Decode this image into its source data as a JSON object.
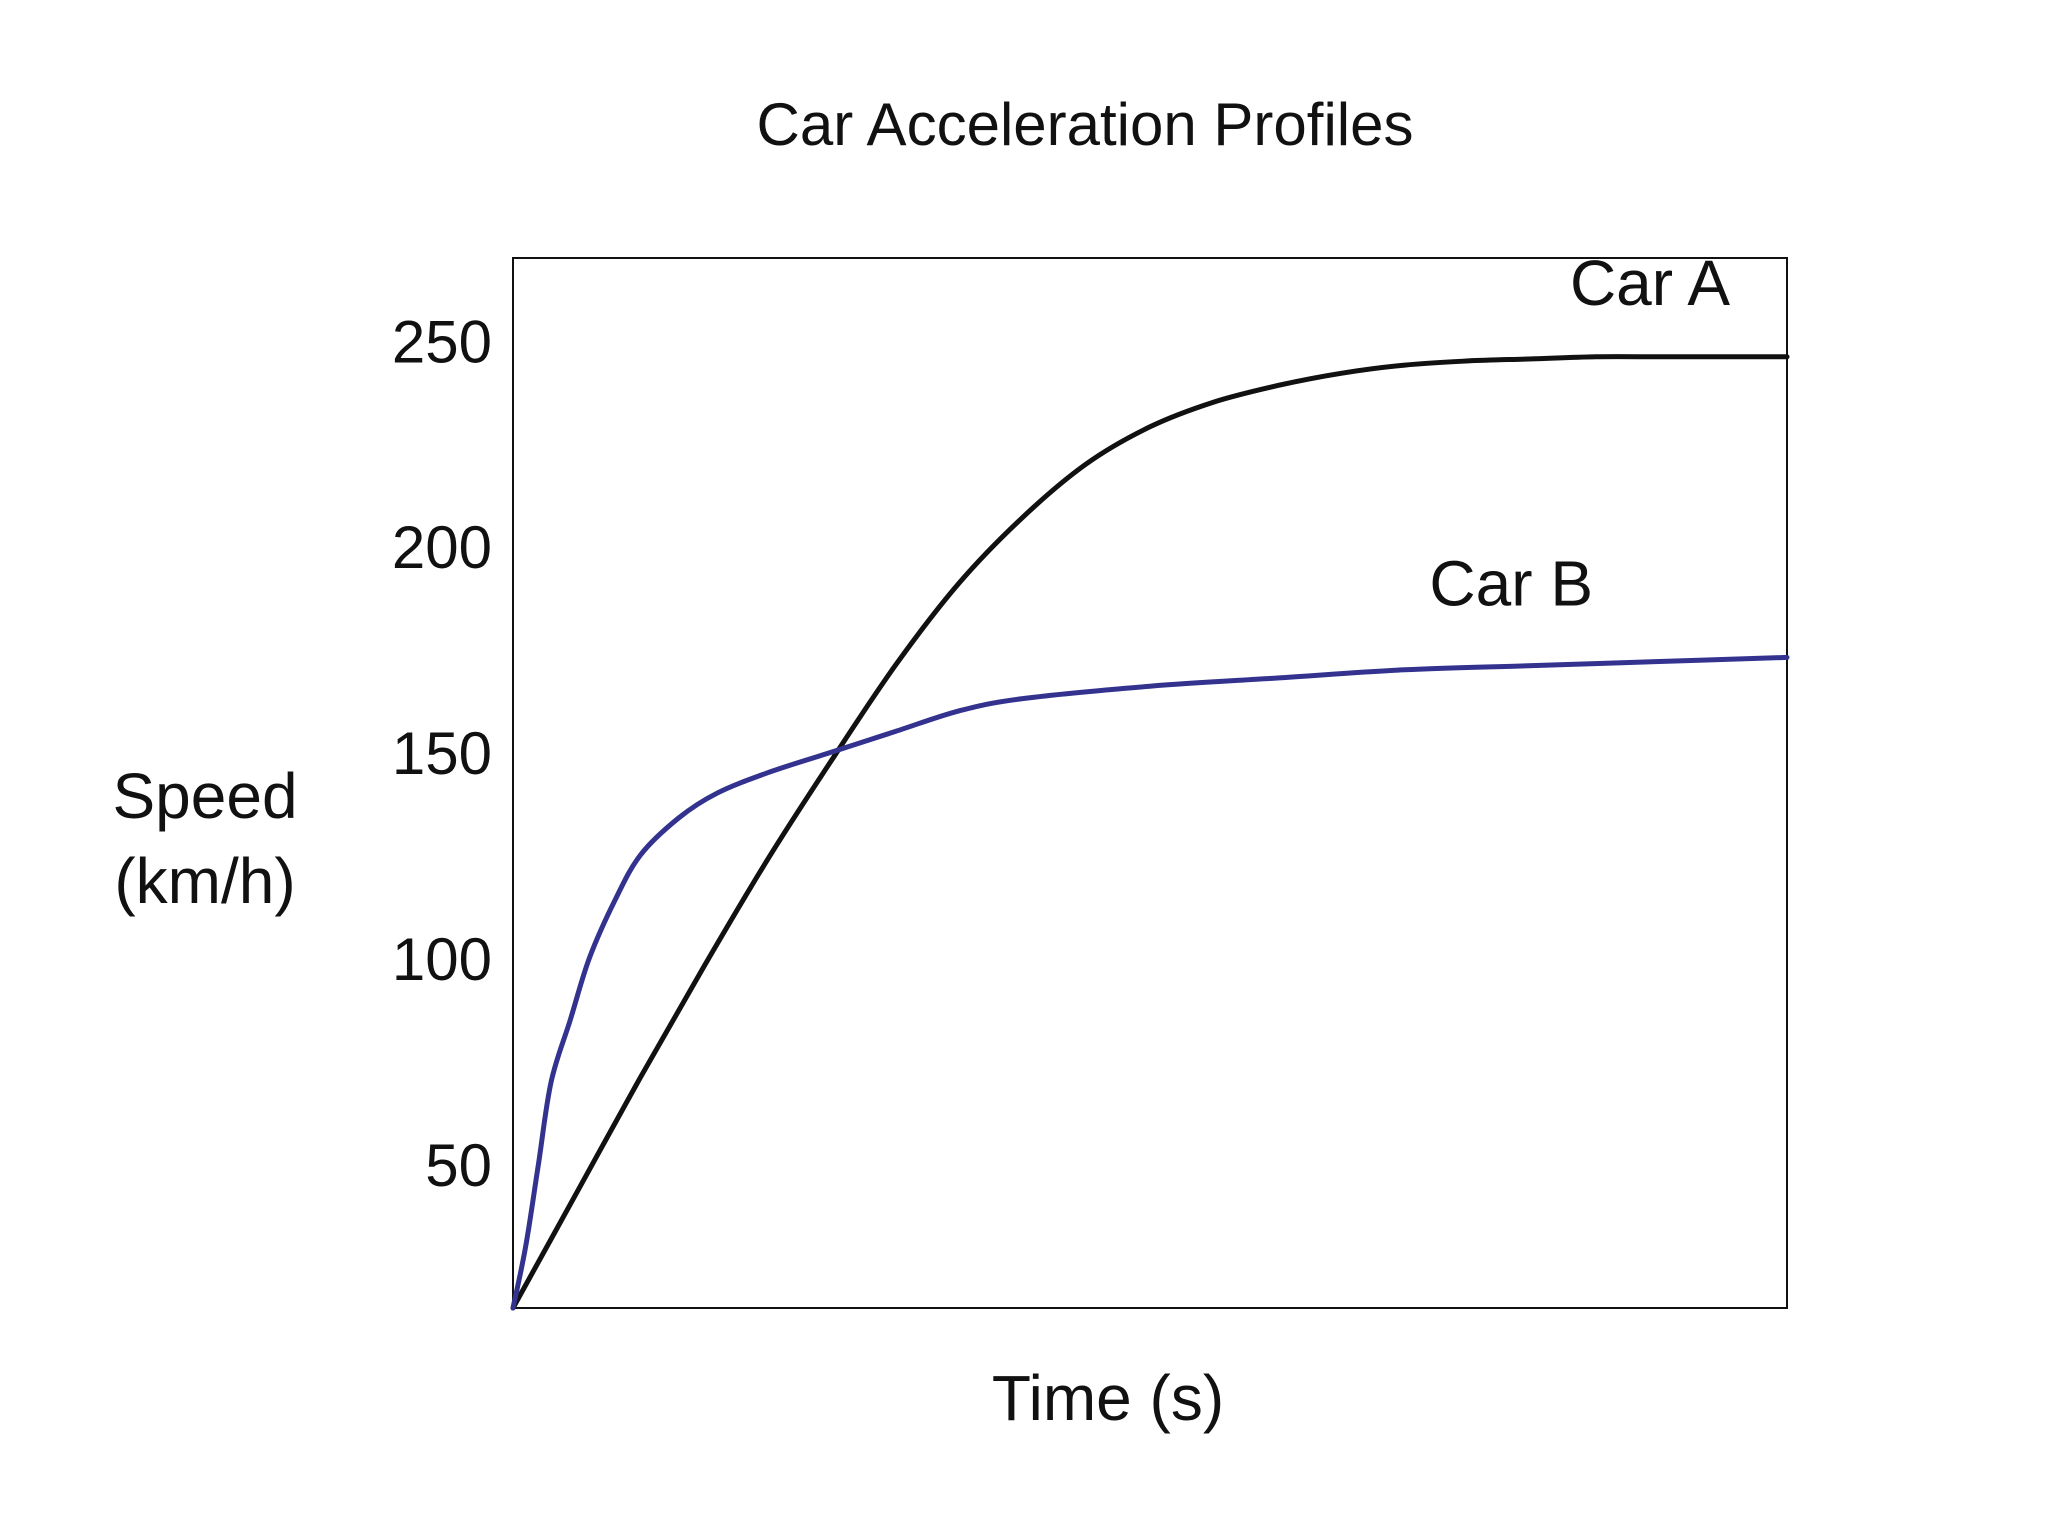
{
  "chart_data": {
    "type": "line",
    "title": "Car Acceleration Profiles",
    "xlabel": "Time (s)",
    "ylabel": [
      "Speed",
      "(km/h)"
    ],
    "yticks": [
      50,
      100,
      150,
      200,
      250
    ],
    "ylim": [
      15,
      270
    ],
    "xlim": [
      0,
      10
    ],
    "grid": false,
    "series": [
      {
        "name": "Car A",
        "color": "#111111",
        "x": [
          0,
          0.5,
          1.0,
          1.5,
          2.0,
          2.5,
          3.0,
          3.5,
          4.0,
          4.5,
          5.0,
          5.5,
          6.0,
          6.5,
          7.0,
          7.5,
          8.0,
          8.5,
          9.0,
          9.5,
          10.0
        ],
        "y": [
          15,
          43,
          71,
          98,
          124,
          148,
          171,
          191,
          207,
          220,
          229,
          235,
          239,
          242,
          244,
          245,
          245.5,
          246,
          246,
          246,
          246
        ]
      },
      {
        "name": "Car B",
        "color": "#33338f",
        "x": [
          0,
          0.1,
          0.2,
          0.3,
          0.45,
          0.6,
          0.8,
          1.0,
          1.3,
          1.6,
          2.0,
          2.5,
          3.0,
          3.5,
          4.0,
          5.0,
          6.0,
          7.0,
          8.0,
          9.0,
          10.0
        ],
        "y": [
          15,
          30,
          50,
          70,
          85,
          100,
          114,
          125,
          134,
          140,
          145,
          150,
          155,
          160,
          163,
          166,
          168,
          170,
          171,
          172,
          173
        ]
      }
    ]
  }
}
